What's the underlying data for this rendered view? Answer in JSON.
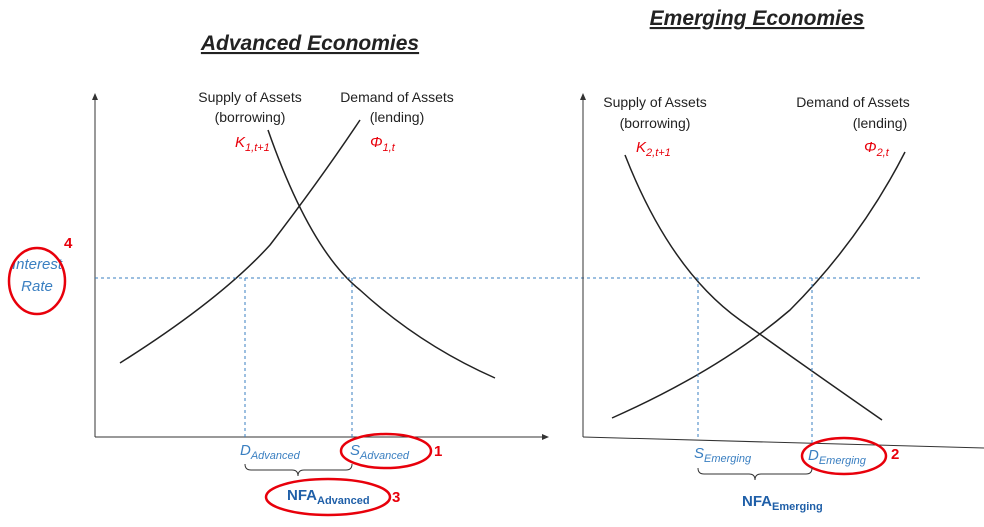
{
  "interest_rate": {
    "line1": "Interest",
    "line2": "Rate",
    "marker": "4"
  },
  "panels": [
    {
      "title": "Advanced Economies",
      "supply": {
        "line1": "Supply of Assets",
        "line2": "(borrowing)",
        "symbol": "K",
        "symbol_sub": "1,t+1"
      },
      "demand": {
        "line1": "Demand of Assets",
        "line2": "(lending)",
        "symbol": "Φ",
        "symbol_sub": "1,t"
      },
      "x_labels": [
        {
          "main": "D",
          "sub": "Advanced"
        },
        {
          "main": "S",
          "sub": "Advanced",
          "marker": "1"
        }
      ],
      "nfa": {
        "main": "NFA",
        "sub": "Advanced",
        "marker": "3"
      }
    },
    {
      "title": "Emerging Economies",
      "supply": {
        "line1": "Supply of Assets",
        "line2": "(borrowing)",
        "symbol": "K",
        "symbol_sub": "2,t+1"
      },
      "demand": {
        "line1": "Demand of Assets",
        "line2": "(lending)",
        "symbol": "Φ",
        "symbol_sub": "2,t"
      },
      "x_labels": [
        {
          "main": "S",
          "sub": "Emerging"
        },
        {
          "main": "D",
          "sub": "Emerging",
          "marker": "2"
        }
      ],
      "nfa": {
        "main": "NFA",
        "sub": "Emerging"
      }
    }
  ]
}
